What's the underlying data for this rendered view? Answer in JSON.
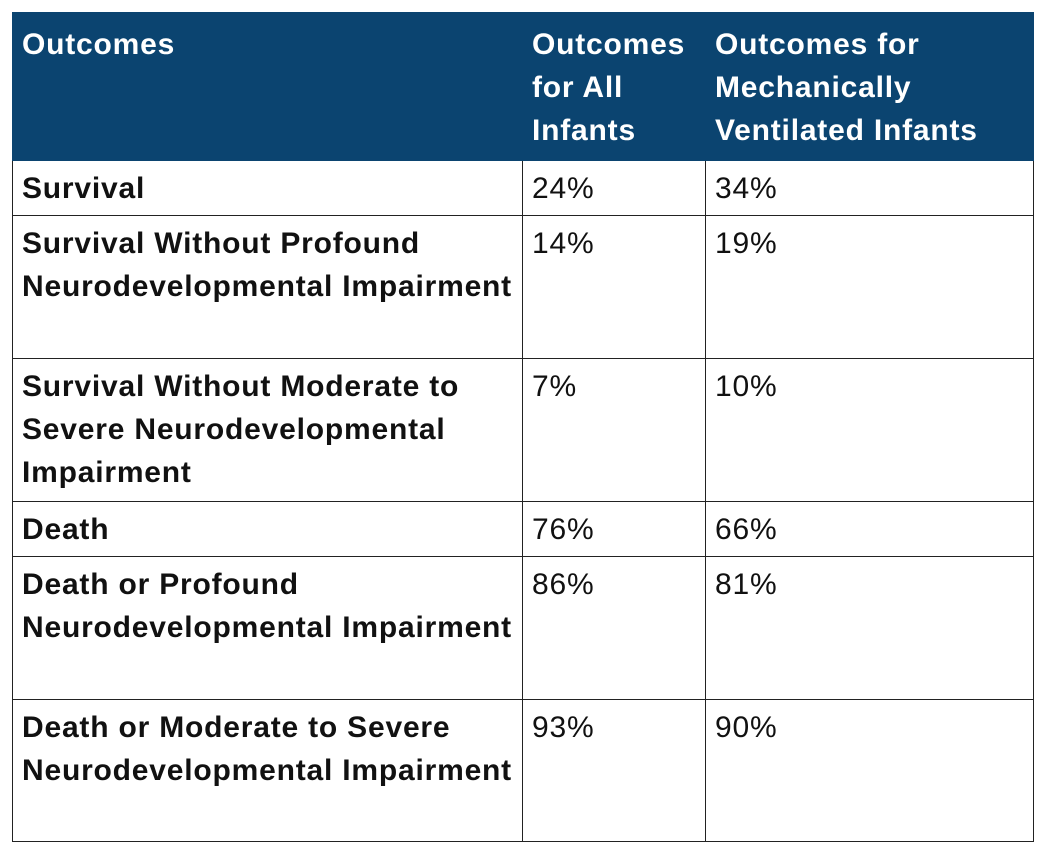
{
  "table": {
    "header": [
      "Outcomes",
      "Outcomes for All Infants",
      "Outcomes for Mechanically Ventilated Infants"
    ],
    "rows": [
      [
        "Survival",
        "24%",
        "34%"
      ],
      [
        "Survival Without Profound Neurodevelopmental Impairment",
        "14%",
        "19%"
      ],
      [
        "Survival Without Moderate to Severe Neurodevelopmental Impairment",
        "7%",
        "10%"
      ],
      [
        "Death",
        "76%",
        "66%"
      ],
      [
        "Death or Profound Neurodevelopmental Impairment",
        "86%",
        "81%"
      ],
      [
        "Death or Moderate to Severe Neurodevelopmental Impairment",
        "93%",
        "90%"
      ]
    ]
  }
}
